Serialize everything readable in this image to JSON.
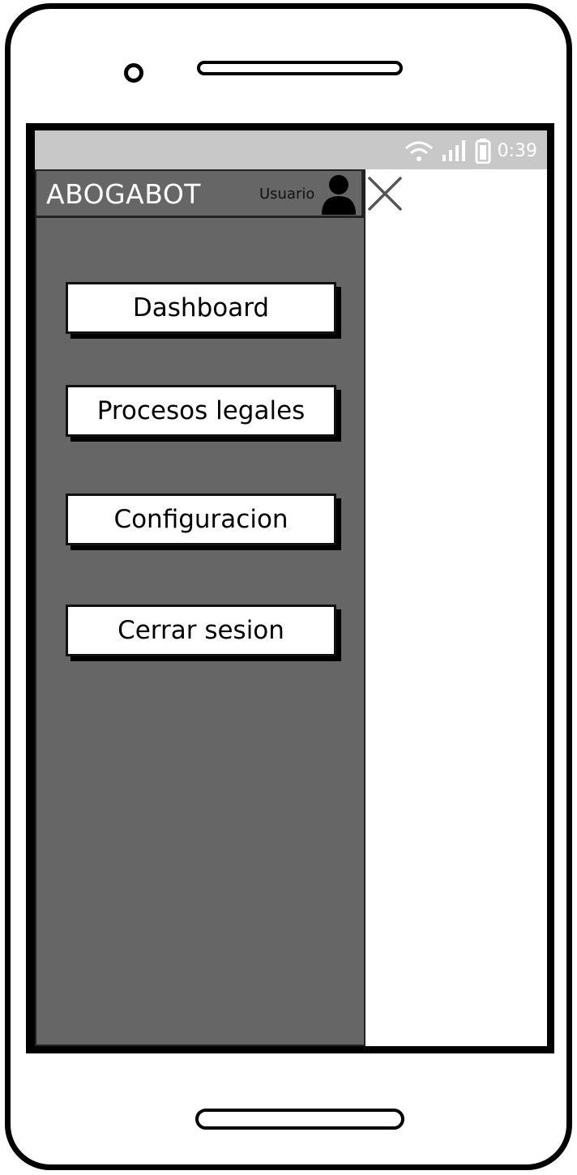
{
  "status_bar": {
    "time": "0:39",
    "icons": [
      "wifi-icon",
      "signal-icon",
      "battery-icon"
    ],
    "background": "#c8c8c8"
  },
  "drawer": {
    "app_title": "ABOGABOT",
    "user_label": "Usuario",
    "avatar_icon": "user-icon",
    "background": "#666666",
    "menu": [
      {
        "label": "Dashboard"
      },
      {
        "label": "Procesos legales"
      },
      {
        "label": "Configuracion"
      },
      {
        "label": "Cerrar sesion"
      }
    ]
  },
  "close_icon": "close-icon"
}
